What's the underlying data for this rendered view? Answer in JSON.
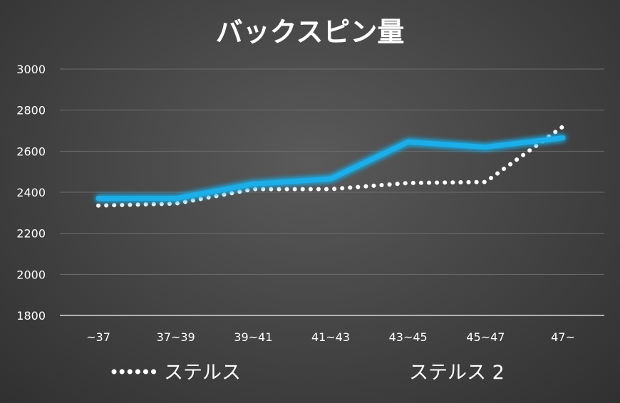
{
  "chart_data": {
    "type": "line",
    "title": "バックスピン量",
    "categories": [
      "~37",
      "37~39",
      "39~41",
      "41~43",
      "43~45",
      "45~47",
      "47~"
    ],
    "ylim": [
      1800,
      3000
    ],
    "yticks": [
      1800,
      2000,
      2200,
      2400,
      2600,
      2800,
      3000
    ],
    "grid": true,
    "legend_position": "bottom",
    "series": [
      {
        "name": "ステルス",
        "style": "dotted",
        "color": "#ffffff",
        "values": [
          2335,
          2345,
          2415,
          2415,
          2445,
          2450,
          2720
        ]
      },
      {
        "name": "ステルス 2",
        "style": "solid",
        "color": "#1aaee8",
        "values": [
          2370,
          2370,
          2440,
          2465,
          2645,
          2620,
          2665
        ]
      }
    ]
  }
}
